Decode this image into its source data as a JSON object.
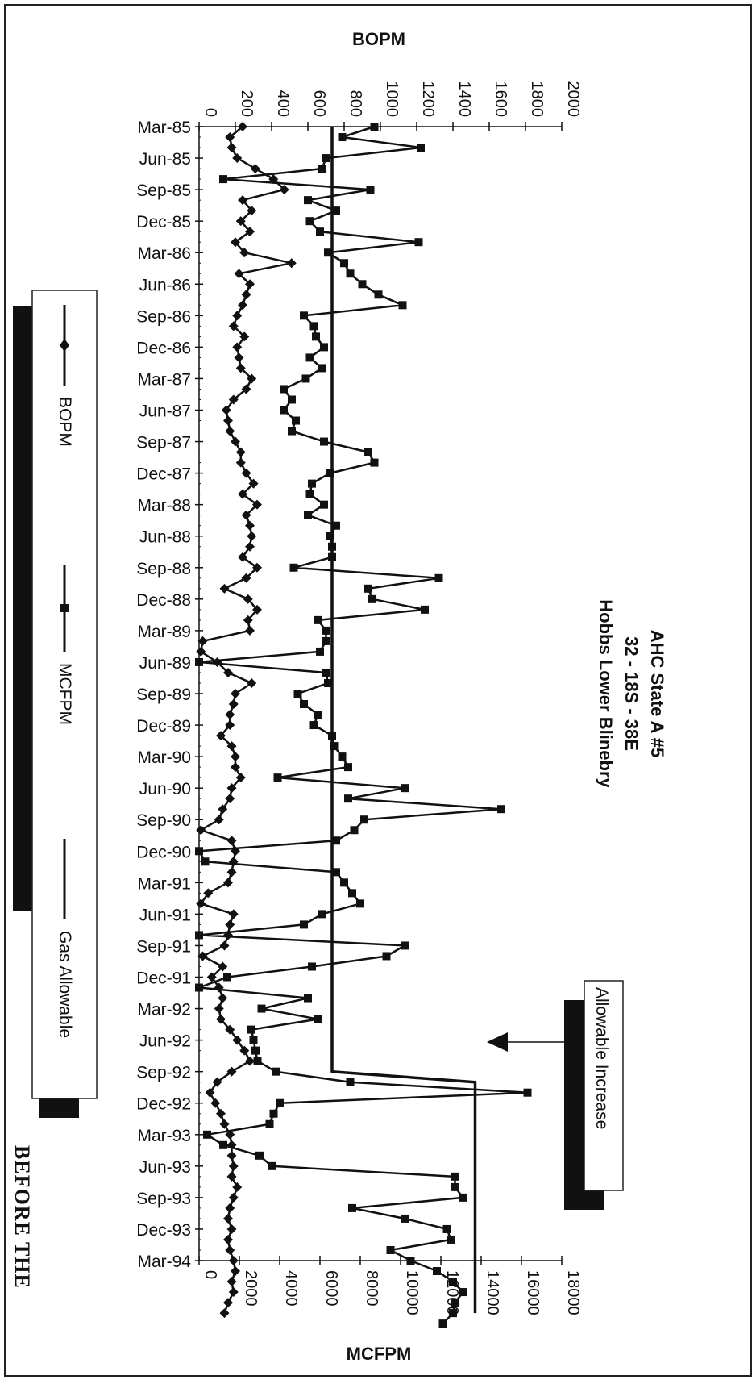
{
  "footer_text": "BEFORE THE",
  "annotation": {
    "label": "Allowable Increase"
  },
  "chart_data": {
    "type": "line",
    "title": [
      "AHC State A #5",
      "32 - 18S - 38E",
      "Hobbs Lower Blinebry"
    ],
    "x_axis": {
      "categories": [
        "Mar-85",
        "Jun-85",
        "Sep-85",
        "Dec-85",
        "Mar-86",
        "Jun-86",
        "Sep-86",
        "Dec-86",
        "Mar-87",
        "Jun-87",
        "Sep-87",
        "Dec-87",
        "Mar-88",
        "Jun-88",
        "Sep-88",
        "Dec-88",
        "Mar-89",
        "Jun-89",
        "Sep-89",
        "Dec-89",
        "Mar-90",
        "Jun-90",
        "Sep-90",
        "Dec-90",
        "Mar-91",
        "Jun-91",
        "Sep-91",
        "Dec-91",
        "Mar-92",
        "Jun-92",
        "Sep-92",
        "Dec-92",
        "Mar-93",
        "Jun-93",
        "Sep-93",
        "Dec-93",
        "Mar-94"
      ],
      "points_per_category": 3
    },
    "axis_bopm": {
      "label": "BOPM",
      "min": 0,
      "max": 2000,
      "ticks": [
        0,
        200,
        400,
        600,
        800,
        1000,
        1200,
        1400,
        1600,
        1800,
        2000
      ]
    },
    "axis_mcfpm": {
      "label": "MCFPM",
      "min": 0,
      "max": 18000,
      "ticks": [
        0,
        2000,
        4000,
        6000,
        8000,
        10000,
        12000,
        14000,
        16000,
        18000
      ]
    },
    "legend": {
      "position": "left",
      "entries": [
        "BOPM",
        "MCFPM",
        "Gas Allowable"
      ]
    },
    "series": [
      {
        "name": "BOPM",
        "axis": "BOPM",
        "marker": "diamond",
        "values": [
          240,
          170,
          180,
          210,
          310,
          410,
          470,
          240,
          290,
          230,
          280,
          200,
          250,
          510,
          220,
          280,
          260,
          240,
          210,
          190,
          250,
          210,
          220,
          230,
          290,
          260,
          190,
          150,
          160,
          170,
          200,
          230,
          230,
          260,
          300,
          240,
          320,
          260,
          280,
          290,
          280,
          240,
          320,
          260,
          140,
          270,
          320,
          270,
          280,
          20,
          10,
          100,
          160,
          290,
          200,
          190,
          170,
          170,
          120,
          180,
          200,
          200,
          230,
          180,
          170,
          130,
          110,
          10,
          180,
          200,
          190,
          180,
          160,
          50,
          10,
          190,
          170,
          160,
          140,
          20,
          130,
          70,
          110,
          130,
          110,
          120,
          170,
          210,
          250,
          280,
          180,
          100,
          60,
          90,
          120,
          140,
          170,
          180,
          180,
          190,
          180,
          210,
          190,
          170,
          160,
          180,
          160,
          170,
          190,
          200,
          180,
          190,
          160,
          140
        ]
      },
      {
        "name": "MCFPM",
        "axis": "MCFPM",
        "marker": "square",
        "values": [
          8700,
          7100,
          11000,
          6300,
          6100,
          1200,
          8500,
          5400,
          6800,
          5500,
          6000,
          10900,
          6400,
          7200,
          7500,
          8100,
          8900,
          10100,
          5200,
          5700,
          5800,
          6200,
          5500,
          6100,
          5300,
          4200,
          4600,
          4200,
          4800,
          4600,
          6200,
          8400,
          8700,
          6500,
          5600,
          5500,
          6200,
          5400,
          6800,
          6500,
          6600,
          6600,
          4700,
          11900,
          8400,
          8600,
          11200,
          5900,
          6300,
          6300,
          6000,
          0,
          6300,
          6400,
          4900,
          5200,
          5900,
          5700,
          6600,
          6700,
          7100,
          7400,
          3900,
          10200,
          7400,
          15000,
          8200,
          7700,
          6800,
          0,
          300,
          6800,
          7200,
          7600,
          8000,
          6100,
          5200,
          0,
          10200,
          9300,
          5600,
          1400,
          0,
          5400,
          3100,
          5900,
          2600,
          2700,
          2800,
          2900,
          3800,
          7500,
          16300,
          4000,
          3700,
          3500,
          400,
          1200,
          3000,
          3600,
          12700,
          12700,
          13100,
          7600,
          10200,
          12300,
          12500,
          9500,
          10500,
          11800,
          12600,
          13100,
          12700,
          12600,
          12100
        ]
      },
      {
        "name": "Gas Allowable",
        "axis": "MCFPM",
        "marker": "none",
        "values": [
          6600,
          6600,
          6600,
          6600,
          6600,
          6600,
          6600,
          6600,
          6600,
          6600,
          6600,
          6600,
          6600,
          6600,
          6600,
          6600,
          6600,
          6600,
          6600,
          6600,
          6600,
          6600,
          6600,
          6600,
          6600,
          6600,
          6600,
          6600,
          6600,
          6600,
          6600,
          6600,
          6600,
          6600,
          6600,
          6600,
          6600,
          6600,
          6600,
          6600,
          6600,
          6600,
          6600,
          6600,
          6600,
          6600,
          6600,
          6600,
          6600,
          6600,
          6600,
          6600,
          6600,
          6600,
          6600,
          6600,
          6600,
          6600,
          6600,
          6600,
          6600,
          6600,
          6600,
          6600,
          6600,
          6600,
          6600,
          6600,
          6600,
          6600,
          6600,
          6600,
          6600,
          6600,
          6600,
          6600,
          6600,
          6600,
          6600,
          6600,
          6600,
          6600,
          6600,
          6600,
          6600,
          6600,
          6600,
          6600,
          6600,
          6600,
          6600,
          13700,
          13700,
          13700,
          13700,
          13700,
          13700,
          13700,
          13700,
          13700,
          13700,
          13700,
          13700,
          13700,
          13700,
          13700,
          13700,
          13700,
          13700,
          13700,
          13700,
          13700,
          13700,
          13700
        ]
      }
    ]
  }
}
